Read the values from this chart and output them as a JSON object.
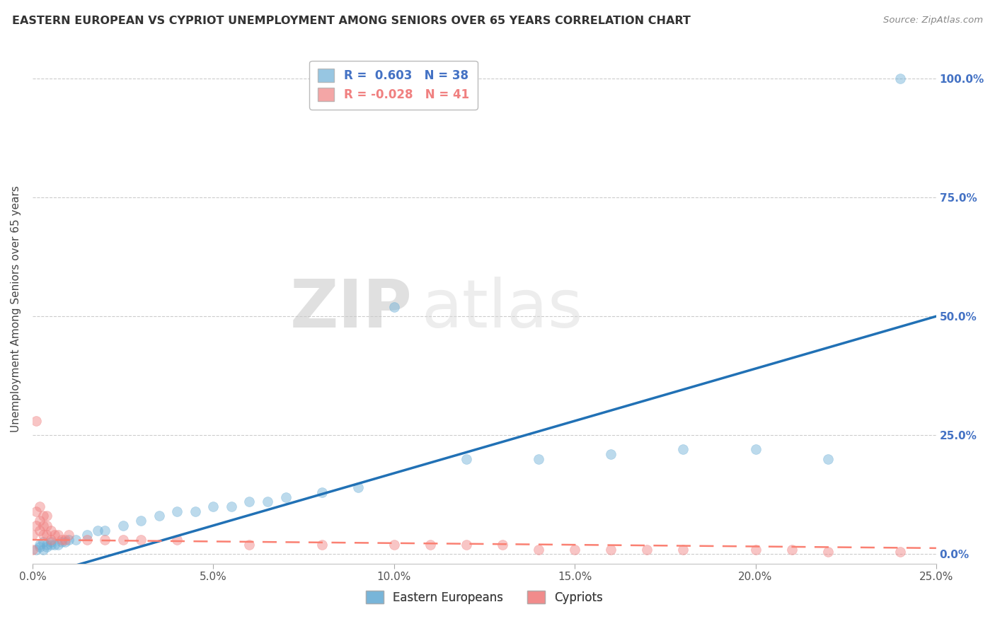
{
  "title": "EASTERN EUROPEAN VS CYPRIOT UNEMPLOYMENT AMONG SENIORS OVER 65 YEARS CORRELATION CHART",
  "source": "Source: ZipAtlas.com",
  "ylabel": "Unemployment Among Seniors over 65 years",
  "xlim": [
    0,
    0.25
  ],
  "ylim": [
    -0.02,
    1.05
  ],
  "yticks": [
    0.0,
    0.25,
    0.5,
    0.75,
    1.0
  ],
  "ytick_labels": [
    "0.0%",
    "25.0%",
    "50.0%",
    "75.0%",
    "100.0%"
  ],
  "xticks": [
    0.0,
    0.05,
    0.1,
    0.15,
    0.2,
    0.25
  ],
  "xtick_labels": [
    "0.0%",
    "5.0%",
    "10.0%",
    "15.0%",
    "20.0%",
    "25.0%"
  ],
  "eastern_european_color": "#6BAED6",
  "cypriot_color": "#F08080",
  "eastern_european_R": 0.603,
  "eastern_european_N": 38,
  "cypriot_R": -0.028,
  "cypriot_N": 41,
  "legend_label_eastern": "Eastern Europeans",
  "legend_label_cypriot": "Cypriots",
  "background_color": "#ffffff",
  "right_axis_color": "#4472C4",
  "eastern_european_x": [
    0.001,
    0.002,
    0.002,
    0.003,
    0.003,
    0.004,
    0.004,
    0.005,
    0.005,
    0.006,
    0.007,
    0.008,
    0.009,
    0.01,
    0.012,
    0.015,
    0.018,
    0.02,
    0.025,
    0.03,
    0.035,
    0.04,
    0.045,
    0.05,
    0.055,
    0.06,
    0.065,
    0.07,
    0.08,
    0.09,
    0.1,
    0.12,
    0.14,
    0.16,
    0.18,
    0.2,
    0.22,
    0.24
  ],
  "eastern_european_y": [
    0.01,
    0.015,
    0.02,
    0.01,
    0.025,
    0.015,
    0.02,
    0.02,
    0.025,
    0.02,
    0.02,
    0.025,
    0.025,
    0.03,
    0.03,
    0.04,
    0.05,
    0.05,
    0.06,
    0.07,
    0.08,
    0.09,
    0.09,
    0.1,
    0.1,
    0.11,
    0.11,
    0.12,
    0.13,
    0.14,
    0.52,
    0.2,
    0.2,
    0.21,
    0.22,
    0.22,
    0.2,
    1.0
  ],
  "cypriot_x": [
    0.0,
    0.0,
    0.001,
    0.001,
    0.001,
    0.002,
    0.002,
    0.002,
    0.003,
    0.003,
    0.003,
    0.004,
    0.004,
    0.004,
    0.005,
    0.005,
    0.006,
    0.007,
    0.008,
    0.009,
    0.01,
    0.015,
    0.02,
    0.025,
    0.03,
    0.04,
    0.06,
    0.08,
    0.1,
    0.11,
    0.12,
    0.13,
    0.14,
    0.15,
    0.16,
    0.17,
    0.18,
    0.2,
    0.21,
    0.22,
    0.24
  ],
  "cypriot_y": [
    0.01,
    0.04,
    0.06,
    0.09,
    0.28,
    0.05,
    0.07,
    0.1,
    0.04,
    0.06,
    0.08,
    0.04,
    0.06,
    0.08,
    0.03,
    0.05,
    0.04,
    0.04,
    0.03,
    0.03,
    0.04,
    0.03,
    0.03,
    0.03,
    0.03,
    0.03,
    0.02,
    0.02,
    0.02,
    0.02,
    0.02,
    0.02,
    0.01,
    0.01,
    0.01,
    0.01,
    0.01,
    0.01,
    0.01,
    0.005,
    0.005
  ],
  "trend_line_color_eastern": "#2171B5",
  "trend_line_color_cypriot": "#FA8072",
  "watermark_zip": "ZIP",
  "watermark_atlas": "atlas",
  "marker_size": 100,
  "marker_alpha": 0.45
}
